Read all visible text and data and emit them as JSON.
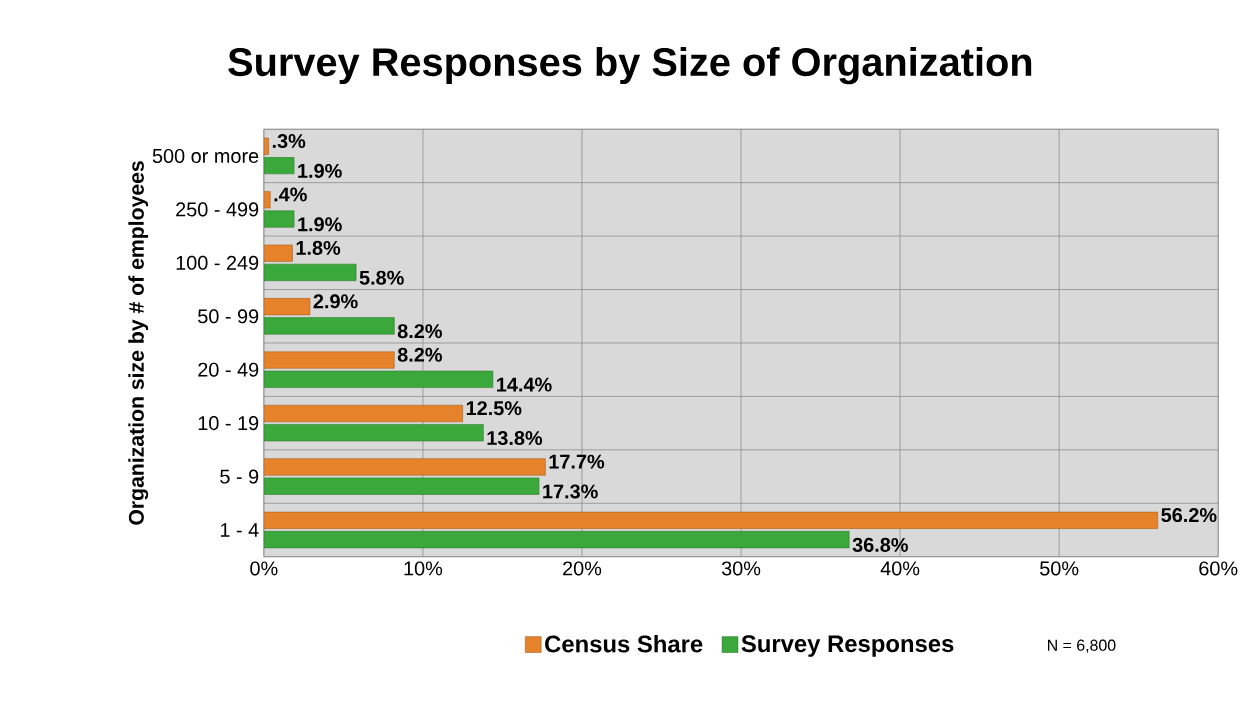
{
  "chart_data": {
    "type": "bar",
    "orientation": "horizontal",
    "title": "Survey Responses by Size of Organization",
    "ylabel": "Organization size by # of employees",
    "categories": [
      "500 or more",
      "250 - 499",
      "100 - 249",
      "50 - 99",
      "20 - 49",
      "10 - 19",
      "5 - 9",
      "1 - 4"
    ],
    "series": [
      {
        "name": "Census Share",
        "color": "#e5822a",
        "values": [
          0.3,
          0.4,
          1.8,
          2.9,
          8.2,
          12.5,
          17.7,
          56.2
        ],
        "value_labels": [
          ".3%",
          ".4%",
          "1.8%",
          "2.9%",
          "8.2%",
          "12.5%",
          "17.7%",
          "56.2%"
        ]
      },
      {
        "name": "Survey Responses",
        "color": "#3aa83a",
        "values": [
          1.9,
          1.9,
          5.8,
          8.2,
          14.4,
          13.8,
          17.3,
          36.8
        ],
        "value_labels": [
          "1.9%",
          "1.9%",
          "5.8%",
          "8.2%",
          "14.4%",
          "13.8%",
          "17.3%",
          "36.8%"
        ]
      }
    ],
    "xlim": [
      0,
      60
    ],
    "xticks": [
      {
        "value": 0,
        "label": "0%"
      },
      {
        "value": 10,
        "label": "10%"
      },
      {
        "value": 20,
        "label": "20%"
      },
      {
        "value": 30,
        "label": "30%"
      },
      {
        "value": 40,
        "label": "40%"
      },
      {
        "value": 50,
        "label": "50%"
      },
      {
        "value": 60,
        "label": "60%"
      }
    ],
    "grid": true,
    "legend": "bottom",
    "annotations": [
      "N = 6,800"
    ]
  }
}
